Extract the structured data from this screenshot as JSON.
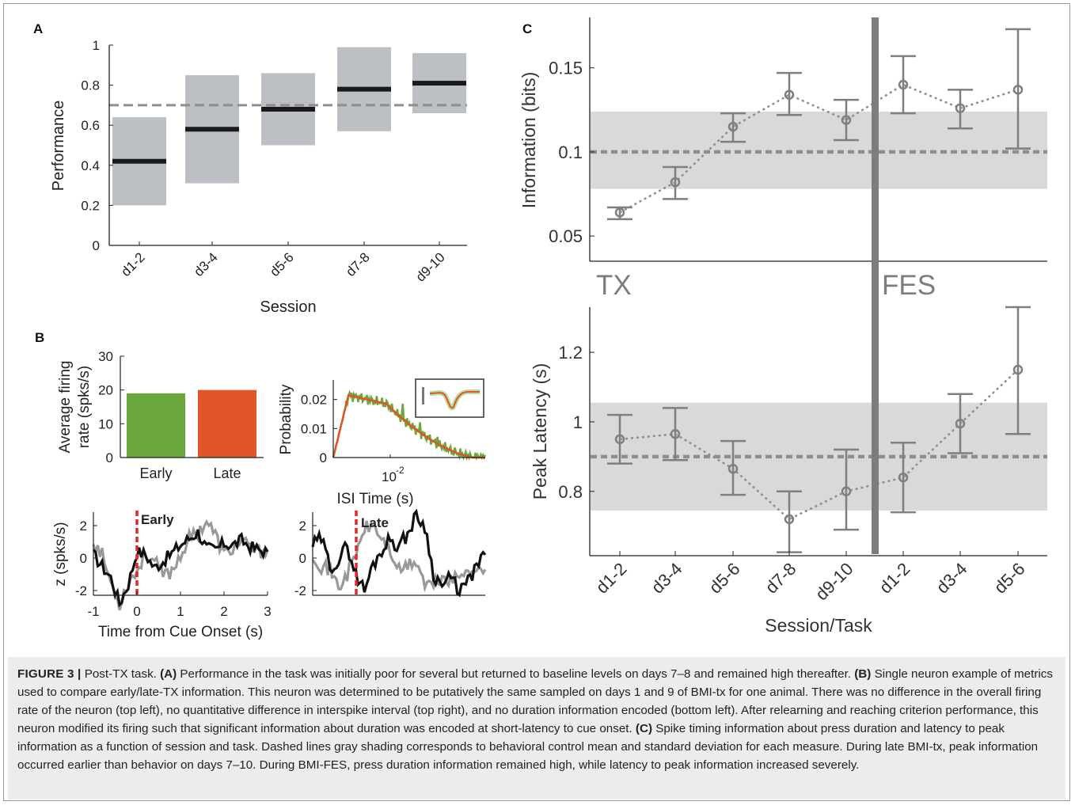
{
  "colors": {
    "axis": "#222222",
    "box": "#bcc0c4",
    "median": "#1a1a1a",
    "dashed": "#8e8e8e",
    "shade": "#d9d9d9",
    "err": "#7f7f7f",
    "early": "#6aa83e",
    "late": "#e0562a",
    "marker": "#e8262a",
    "gray_trace": "#999999",
    "black_trace": "#111111",
    "divider": "#7d7d7d"
  },
  "panel_a": {
    "letter": "A",
    "ylabel": "Performance",
    "xlabel": "Session",
    "ytick_labels": [
      "0",
      "0.2",
      "0.4",
      "0.6",
      "0.8",
      "1"
    ],
    "threshold": 0.7,
    "chart_data": {
      "type": "box",
      "categories": [
        "d1-2",
        "d3-4",
        "d5-6",
        "d7-8",
        "d9-10"
      ],
      "low": [
        0.2,
        0.31,
        0.5,
        0.57,
        0.66
      ],
      "high": [
        0.64,
        0.85,
        0.86,
        0.99,
        0.96
      ],
      "median": [
        0.42,
        0.58,
        0.68,
        0.78,
        0.81
      ],
      "ylim": [
        0,
        1
      ]
    }
  },
  "panel_b": {
    "letter": "B",
    "firing": {
      "ylabel": [
        "Average firing",
        "rate (spks/s)"
      ],
      "ytick_labels": [
        "0",
        "10",
        "20",
        "30"
      ],
      "chart_data": {
        "type": "bar",
        "categories": [
          "Early",
          "Late"
        ],
        "values": [
          19,
          20
        ],
        "ylim": [
          0,
          30
        ]
      }
    },
    "isi": {
      "ylabel": "Probability",
      "xlabel": "ISI Time (s)",
      "xtick_label": "10",
      "xtick_exp": "-2",
      "ytick_labels": [
        "0",
        "0.01",
        "0.02"
      ]
    },
    "zscore": {
      "ylabel": "z (spks/s)",
      "xlabel": "Time from Cue Onset (s)",
      "xtick_labels": [
        "-1",
        "0",
        "1",
        "2",
        "3"
      ],
      "ytick_labels": [
        "-2",
        "0",
        "2"
      ],
      "early_label": "Early",
      "late_label": "Late"
    }
  },
  "panel_c": {
    "letter": "C",
    "xlabel": "Session/Task",
    "tx_label": "TX",
    "fes_label": "FES",
    "categories": [
      "d1-2",
      "d3-4",
      "d5-6",
      "d7-8",
      "d9-10",
      "d1-2",
      "d3-4",
      "d5-6"
    ],
    "info": {
      "ylabel": "Information (bits)",
      "ytick_labels": [
        "0.05",
        "0.1",
        "0.15"
      ],
      "ylim": [
        0.035,
        0.18
      ],
      "control_mean": 0.1,
      "control_band": [
        0.078,
        0.124
      ],
      "chart_data": {
        "type": "line",
        "mean": [
          0.064,
          0.082,
          0.115,
          0.134,
          0.119,
          0.14,
          0.126,
          0.137
        ],
        "err_low": [
          0.06,
          0.072,
          0.106,
          0.122,
          0.107,
          0.123,
          0.114,
          0.102
        ],
        "err_high": [
          0.067,
          0.091,
          0.123,
          0.147,
          0.131,
          0.157,
          0.137,
          0.173
        ]
      }
    },
    "latency": {
      "ylabel": "Peak Latency (s)",
      "ytick_labels": [
        "0.8",
        "1",
        "1.2"
      ],
      "ylim": [
        0.615,
        1.33
      ],
      "control_mean": 0.9,
      "control_band": [
        0.745,
        1.055
      ],
      "chart_data": {
        "type": "line",
        "mean": [
          0.95,
          0.965,
          0.865,
          0.72,
          0.8,
          0.84,
          0.995,
          1.15
        ],
        "err_low": [
          0.88,
          0.89,
          0.79,
          0.625,
          0.69,
          0.74,
          0.91,
          0.965
        ],
        "err_high": [
          1.02,
          1.04,
          0.945,
          0.8,
          0.92,
          0.94,
          1.08,
          1.33
        ]
      }
    }
  },
  "caption": {
    "fig_label": "FIGURE 3 |",
    "intro": " Post-TX task. ",
    "a_tag": "(A)",
    "a_text": " Performance in the task was initially poor for several but returned to baseline levels on days 7–8 and remained high thereafter. ",
    "b_tag": "(B)",
    "b_text": " Single neuron example of metrics used to compare early/late-TX information. This neuron was determined to be putatively the same sampled on days 1 and 9 of BMI-tx for one animal. There was no difference in the overall firing rate of the neuron (top left), no quantitative difference in interspike interval (top right), and no duration information encoded (bottom left). After relearning and reaching criterion performance, this neuron modified its firing such that significant information about duration was encoded at short-latency to cue onset. ",
    "c_tag": "(C)",
    "c_text": " Spike timing information about press duration and latency to peak information as a function of session and task. Dashed lines gray shading corresponds to behavioral control mean and standard deviation for each measure. During late BMI-tx, peak information occurred earlier than behavior on days 7–10. During BMI-FES, press duration information remained high, while latency to peak information increased severely."
  }
}
